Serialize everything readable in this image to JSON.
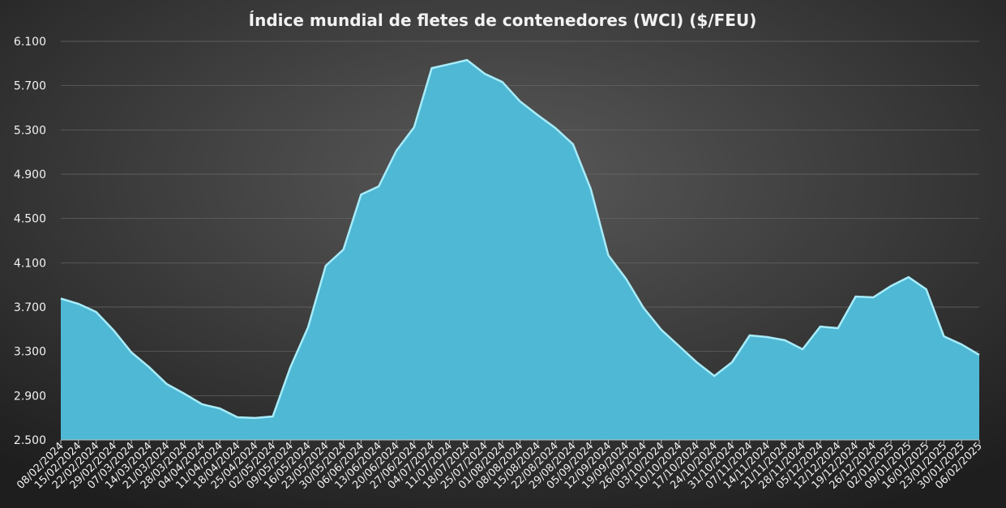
{
  "chart_data": {
    "type": "area",
    "title": "Índice mundial de fletes de contenedores (WCI) ($/FEU)",
    "categories": [
      "08/02/2024",
      "15/02/2024",
      "22/02/2024",
      "29/02/2024",
      "07/03/2024",
      "14/03/2024",
      "21/03/2024",
      "28/03/2024",
      "04/04/2024",
      "11/04/2024",
      "18/04/2024",
      "25/04/2024",
      "02/05/2024",
      "09/05/2024",
      "16/05/2024",
      "23/05/2024",
      "30/05/2024",
      "06/06/2024",
      "13/06/2024",
      "20/06/2024",
      "27/06/2024",
      "04/07/2024",
      "11/07/2024",
      "18/07/2024",
      "25/07/2024",
      "01/08/2024",
      "08/08/2024",
      "15/08/2024",
      "22/08/2024",
      "29/08/2024",
      "05/09/2024",
      "12/09/2024",
      "19/09/2024",
      "26/09/2024",
      "03/10/2024",
      "10/10/2024",
      "17/10/2024",
      "24/10/2024",
      "31/10/2024",
      "07/11/2024",
      "14/11/2024",
      "21/11/2024",
      "28/11/2024",
      "05/12/2024",
      "12/12/2024",
      "19/12/2024",
      "26/12/2024",
      "02/01/2025",
      "09/01/2025",
      "16/01/2025",
      "23/01/2025",
      "30/01/2025",
      "06/02/2025"
    ],
    "values": [
      3777,
      3729,
      3656,
      3488,
      3290,
      3158,
      3005,
      2917,
      2822,
      2785,
      2705,
      2698,
      2712,
      3158,
      3517,
      4073,
      4219,
      4716,
      4790,
      5112,
      5324,
      5858,
      5894,
      5931,
      5807,
      5733,
      5558,
      5434,
      5317,
      5170,
      4768,
      4168,
      3956,
      3692,
      3495,
      3349,
      3202,
      3078,
      3202,
      3444,
      3429,
      3400,
      3319,
      3524,
      3510,
      3795,
      3788,
      3890,
      3970,
      3861,
      3436,
      3363,
      3268
    ],
    "color": "#4fb8d4",
    "ylim": [
      2500,
      6100
    ],
    "yticks": [
      {
        "value": 2500,
        "label": "2.500"
      },
      {
        "value": 2900,
        "label": "2.900"
      },
      {
        "value": 3300,
        "label": "3.300"
      },
      {
        "value": 3700,
        "label": "3.700"
      },
      {
        "value": 4100,
        "label": "4.100"
      },
      {
        "value": 4500,
        "label": "4.500"
      },
      {
        "value": 4900,
        "label": "4.900"
      },
      {
        "value": 5300,
        "label": "5.300"
      },
      {
        "value": 5700,
        "label": "5.700"
      },
      {
        "value": 6100,
        "label": "6.100"
      }
    ],
    "grid": true
  }
}
